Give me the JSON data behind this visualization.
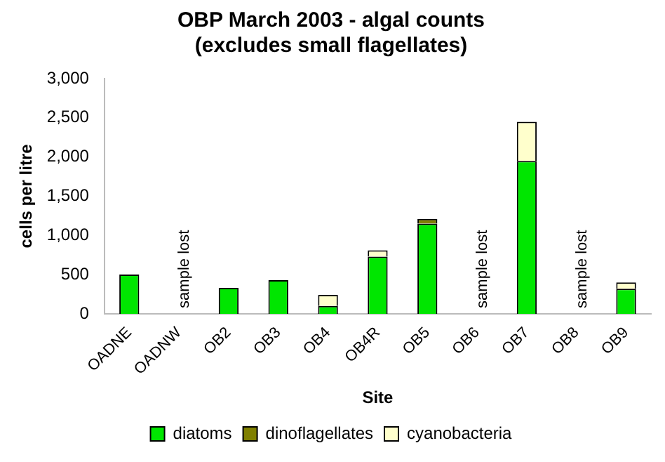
{
  "chart_data": {
    "type": "bar",
    "title": [
      "OBP March 2003 - algal counts",
      "(excludes small flagellates)"
    ],
    "xlabel": "Site",
    "ylabel": "cells per litre",
    "categories": [
      "OADNE",
      "OADNW",
      "OB2",
      "OB3",
      "OB4",
      "OB4R",
      "OB5",
      "OB6",
      "OB7",
      "OB8",
      "OB9"
    ],
    "stacked": true,
    "series": [
      {
        "name": "diatoms",
        "color": "#00e600",
        "values": [
          500,
          null,
          330,
          430,
          100,
          730,
          1150,
          null,
          1950,
          null,
          320
        ]
      },
      {
        "name": "dinoflagellates",
        "color": "#808000",
        "values": [
          null,
          null,
          null,
          null,
          null,
          null,
          60,
          null,
          null,
          null,
          null
        ]
      },
      {
        "name": "cyanobacteria",
        "color": "#ffffcc",
        "values": [
          null,
          null,
          null,
          null,
          140,
          80,
          null,
          null,
          500,
          null,
          80
        ]
      }
    ],
    "ylim": [
      0,
      3000
    ],
    "yticks": [
      {
        "value": 0,
        "label": "0"
      },
      {
        "value": 500,
        "label": "500"
      },
      {
        "value": 1000,
        "label": "1,000"
      },
      {
        "value": 1500,
        "label": "1,500"
      },
      {
        "value": 2000,
        "label": "2,000"
      },
      {
        "value": 2500,
        "label": "2,500"
      },
      {
        "value": 3000,
        "label": "3,000"
      }
    ],
    "grid": false,
    "legend": "bottom",
    "annotations": [
      "sample lost",
      "sample lost",
      "sample lost"
    ]
  }
}
